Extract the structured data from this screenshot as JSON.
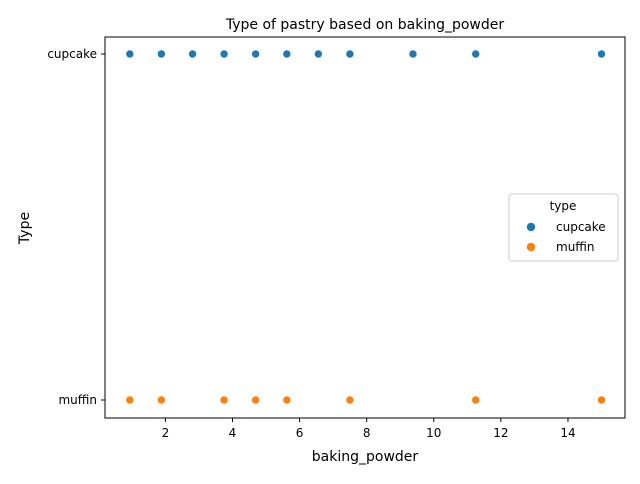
{
  "chart_data": {
    "type": "scatter",
    "title": "Type of pastry based on baking_powder",
    "xlabel": "baking_powder",
    "ylabel": "Type",
    "xlim": [
      0.2,
      15.7
    ],
    "x_ticks": [
      2,
      4,
      6,
      8,
      10,
      12,
      14
    ],
    "y_categories": [
      "cupcake",
      "muffin"
    ],
    "grid": false,
    "legend": {
      "title": "type",
      "placement": "center-right",
      "entries": [
        "cupcake",
        "muffin"
      ]
    },
    "series": [
      {
        "name": "cupcake",
        "color": "#1f77b4",
        "points": [
          {
            "x": 0.94,
            "y": "cupcake"
          },
          {
            "x": 1.88,
            "y": "cupcake"
          },
          {
            "x": 2.81,
            "y": "cupcake"
          },
          {
            "x": 3.75,
            "y": "cupcake"
          },
          {
            "x": 4.69,
            "y": "cupcake"
          },
          {
            "x": 5.62,
            "y": "cupcake"
          },
          {
            "x": 6.56,
            "y": "cupcake"
          },
          {
            "x": 7.5,
            "y": "cupcake"
          },
          {
            "x": 9.38,
            "y": "cupcake"
          },
          {
            "x": 11.25,
            "y": "cupcake"
          },
          {
            "x": 15.0,
            "y": "cupcake"
          }
        ]
      },
      {
        "name": "muffin",
        "color": "#ff7f0e",
        "points": [
          {
            "x": 0.94,
            "y": "muffin"
          },
          {
            "x": 1.88,
            "y": "muffin"
          },
          {
            "x": 3.75,
            "y": "muffin"
          },
          {
            "x": 4.69,
            "y": "muffin"
          },
          {
            "x": 5.62,
            "y": "muffin"
          },
          {
            "x": 7.5,
            "y": "muffin"
          },
          {
            "x": 11.25,
            "y": "muffin"
          },
          {
            "x": 15.0,
            "y": "muffin"
          }
        ]
      }
    ]
  }
}
